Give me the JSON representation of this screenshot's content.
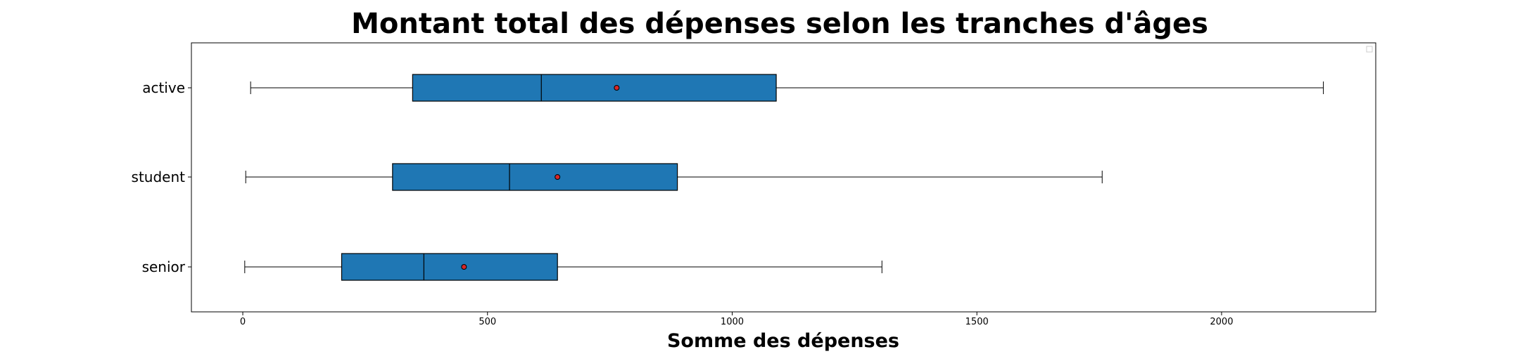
{
  "chart_data": {
    "type": "boxplot",
    "orientation": "horizontal",
    "title": "Montant total des dépenses selon les tranches d'âges",
    "xlabel": "Somme des dépenses",
    "ylabel": "",
    "xlim": [
      -105,
      2315
    ],
    "x_ticks": [
      0,
      500,
      1000,
      1500,
      2000
    ],
    "x_tick_labels": [
      "0",
      "500",
      "1000",
      "1500",
      "2000"
    ],
    "grid": false,
    "legend": "top-right, empty",
    "categories": [
      "active",
      "student",
      "senior"
    ],
    "series": [
      {
        "category": "active",
        "whisker_low": 16,
        "q1": 347,
        "median": 610,
        "q3": 1090,
        "whisker_high": 2208,
        "mean": 764
      },
      {
        "category": "student",
        "whisker_low": 6,
        "q1": 306,
        "median": 545,
        "q3": 888,
        "whisker_high": 1756,
        "mean": 643
      },
      {
        "category": "senior",
        "whisker_low": 4,
        "q1": 202,
        "median": 370,
        "q3": 643,
        "whisker_high": 1306,
        "mean": 452
      }
    ],
    "colors": {
      "box_fill": "#1f77b4",
      "box_edge": "#000000",
      "mean_marker_fill": "#d62728",
      "mean_marker_edge": "#000000"
    }
  }
}
